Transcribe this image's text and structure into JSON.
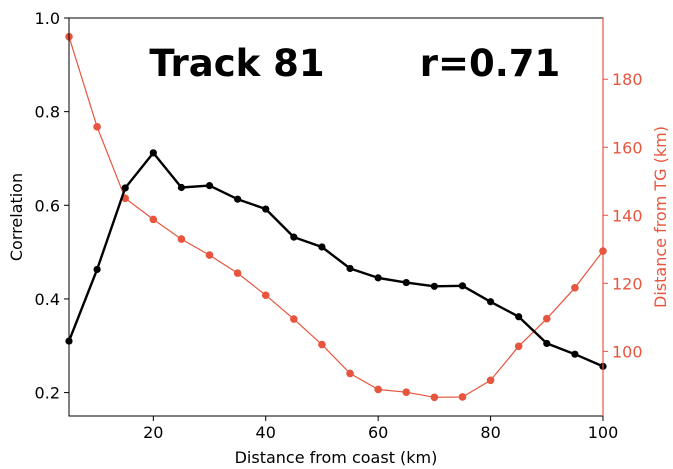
{
  "chart_data": {
    "type": "line",
    "title_left": "Track 81",
    "title_right": "r=0.71",
    "xlabel": "Distance from coast (km)",
    "ylabel_left": "Correlation",
    "ylabel_right": "Distance from TG (km)",
    "xlim": [
      5,
      100
    ],
    "ylim_left": [
      0.15,
      1.0
    ],
    "ylim_right": [
      81,
      198
    ],
    "x_ticks": [
      20,
      40,
      60,
      80,
      100
    ],
    "y_ticks_left": [
      0.2,
      0.4,
      0.6,
      0.8,
      1.0
    ],
    "y_ticks_right": [
      100,
      120,
      140,
      160,
      180
    ],
    "grid": false,
    "series": [
      {
        "axis": "left",
        "color": "#000000",
        "x": [
          5,
          10,
          15,
          20,
          25,
          30,
          35,
          40,
          45,
          50,
          55,
          60,
          65,
          70,
          75,
          80,
          85,
          90,
          95,
          100
        ],
        "values": [
          0.31,
          0.463,
          0.637,
          0.712,
          0.638,
          0.642,
          0.613,
          0.592,
          0.532,
          0.511,
          0.465,
          0.445,
          0.435,
          0.427,
          0.428,
          0.394,
          0.362,
          0.305,
          0.282,
          0.256
        ]
      },
      {
        "axis": "right",
        "color": "#e8553f",
        "x": [
          5,
          10,
          15,
          20,
          25,
          30,
          35,
          40,
          45,
          50,
          55,
          60,
          65,
          70,
          75,
          80,
          85,
          90,
          95,
          100
        ],
        "values": [
          192.5,
          166,
          145,
          138.8,
          133,
          128.3,
          123,
          116.5,
          109.5,
          102,
          93.5,
          88.8,
          88,
          86.5,
          86.6,
          91.5,
          101.5,
          109.6,
          118.7,
          129.5
        ]
      }
    ]
  }
}
